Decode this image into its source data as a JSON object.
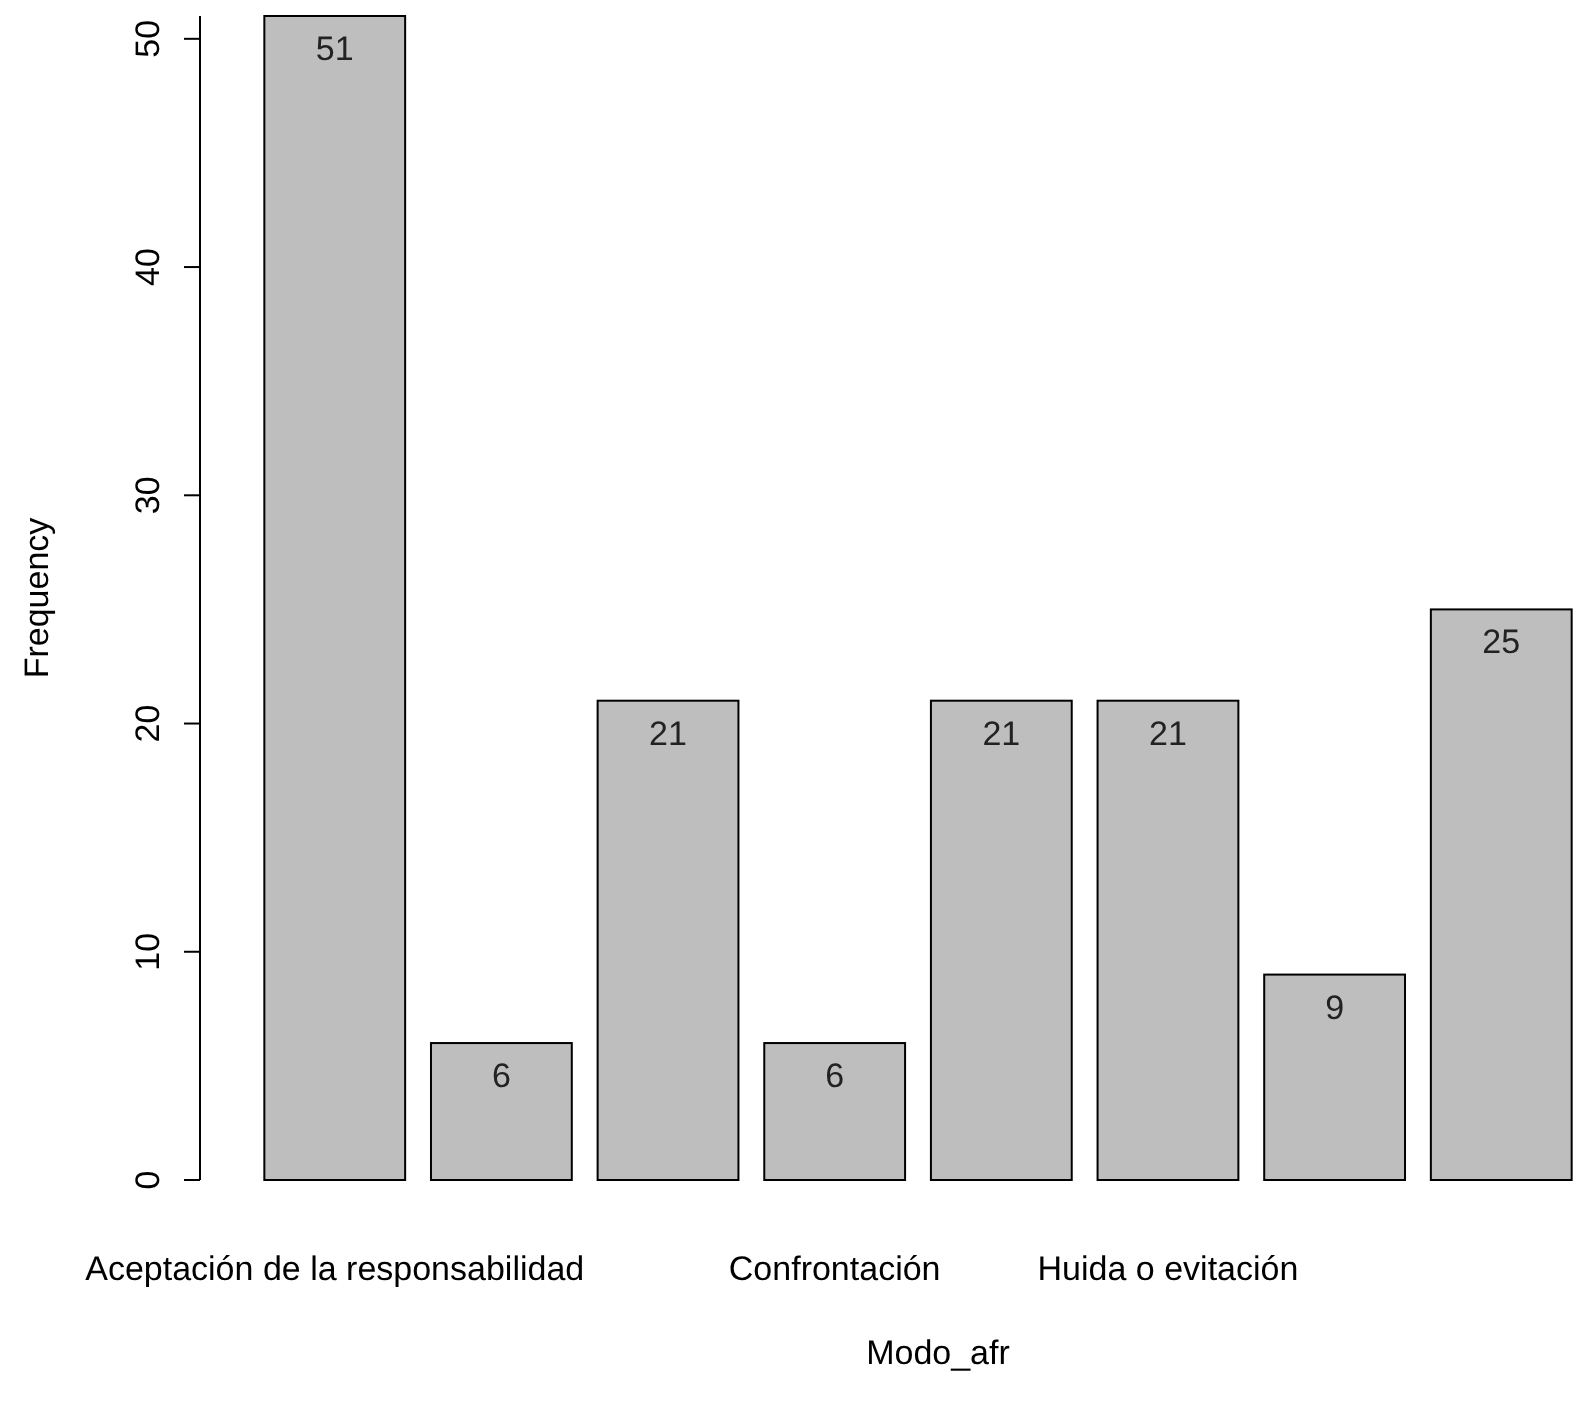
{
  "chart_data": {
    "type": "bar",
    "xlabel": "Modo_afr",
    "ylabel": "Frequency",
    "categories": [
      "Aceptación de la responsabilidad",
      null,
      null,
      "Confrontación",
      null,
      "Huida o evitación",
      null,
      null
    ],
    "values": [
      51,
      6,
      21,
      6,
      21,
      21,
      9,
      25
    ],
    "color": "#bebebe",
    "data_labels": true,
    "ylim": [
      0,
      51
    ],
    "yticks": [
      0,
      10,
      20,
      30,
      40,
      50
    ],
    "grid": false
  }
}
